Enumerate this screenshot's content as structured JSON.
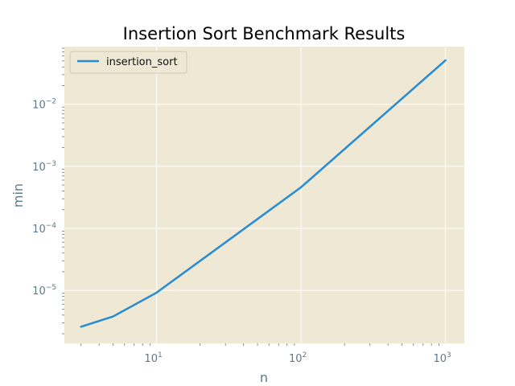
{
  "chart_data": {
    "type": "line",
    "title": "Insertion Sort Benchmark Results",
    "xlabel": "n",
    "ylabel": "min",
    "x_scale": "log",
    "y_scale": "log",
    "xlim": [
      2.3,
      1350
    ],
    "ylim": [
      1.4e-06,
      0.085
    ],
    "x_ticks": [
      {
        "value": 10,
        "base": "10",
        "exp": "1"
      },
      {
        "value": 100,
        "base": "10",
        "exp": "2"
      },
      {
        "value": 1000,
        "base": "10",
        "exp": "3"
      }
    ],
    "y_ticks": [
      {
        "value": 1e-05,
        "base": "10",
        "exp": "−5"
      },
      {
        "value": 0.0001,
        "base": "10",
        "exp": "−4"
      },
      {
        "value": 0.001,
        "base": "10",
        "exp": "−3"
      },
      {
        "value": 0.01,
        "base": "10",
        "exp": "−2"
      }
    ],
    "grid": true,
    "legend_position": "top-left",
    "series": [
      {
        "name": "insertion_sort",
        "color": "#268bd2",
        "x": [
          3,
          5,
          10,
          100,
          1000
        ],
        "y": [
          2.6e-06,
          3.8e-06,
          9.2e-06,
          0.00046,
          0.051
        ]
      }
    ]
  },
  "colors": {
    "plot_background": "#eee8d5",
    "grid": "#ffffff",
    "axis_text": "#5f7a86",
    "series_line": "#268bd2"
  }
}
